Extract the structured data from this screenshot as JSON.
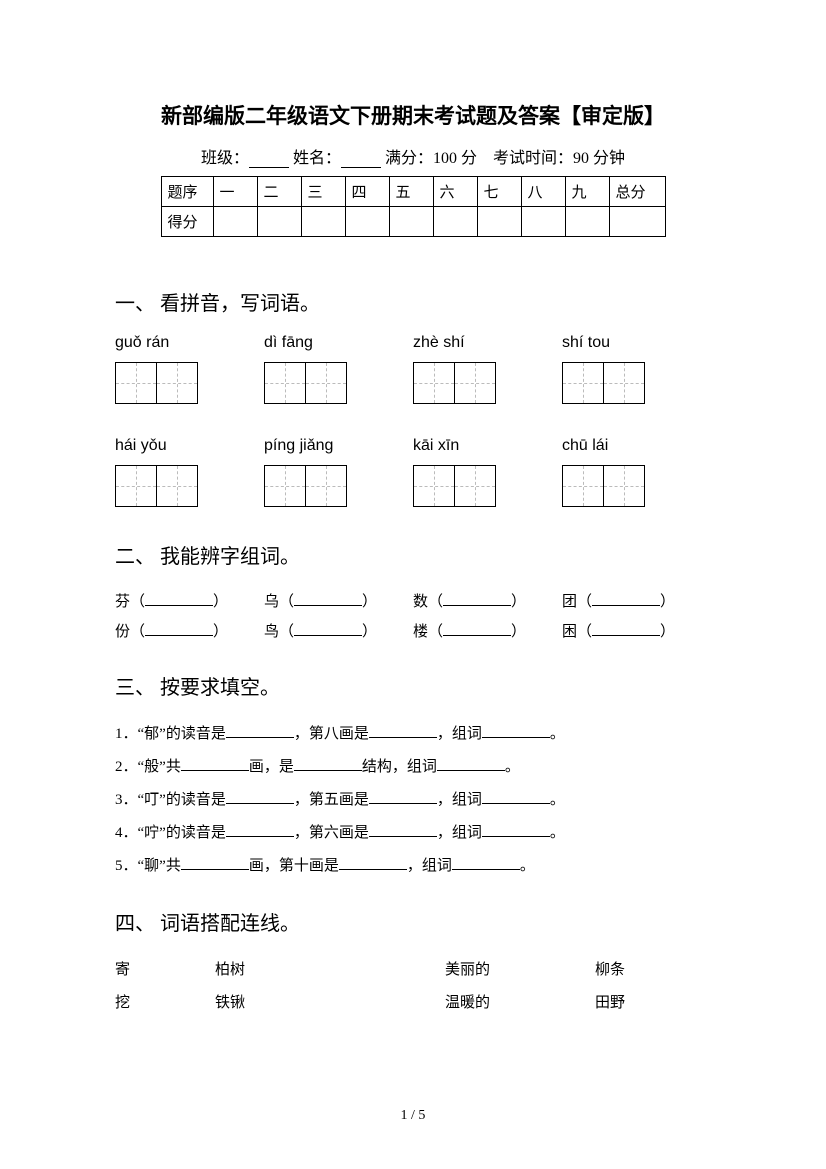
{
  "title": "新部编版二年级语文下册期末考试题及答案【审定版】",
  "info": {
    "class_label": "班级：",
    "name_label": "姓名：",
    "full_label": "满分：100 分",
    "time_label": "考试时间：90 分钟"
  },
  "score_table": {
    "row1": [
      "题序",
      "一",
      "二",
      "三",
      "四",
      "五",
      "六",
      "七",
      "八",
      "九",
      "总分"
    ],
    "row2_label": "得分"
  },
  "q1": {
    "heading": "一、 看拼音，写词语。",
    "row1": [
      "guǒ  rán",
      "dì  fāng",
      "zhè  shí",
      "shí  tou"
    ],
    "row2": [
      "hái  yǒu",
      "píng jiǎng",
      "kāi  xīn",
      "chū  lái"
    ]
  },
  "q2": {
    "heading": "二、 我能辨字组词。",
    "items_r1": [
      "芬（",
      "乌（",
      "数（",
      "团（"
    ],
    "items_r2": [
      "份（",
      "鸟（",
      "楼（",
      "困（"
    ],
    "close": "）"
  },
  "q3": {
    "heading": "三、 按要求填空。",
    "lines": [
      {
        "n": "1．",
        "a": "“郁”的读音是",
        "b": "，第八画是",
        "c": "，组词",
        "d": "。"
      },
      {
        "n": "2．",
        "a": "“般”共",
        "b": "画，是",
        "c": "结构，组词",
        "d": "。"
      },
      {
        "n": "3．",
        "a": "“叮”的读音是",
        "b": "，第五画是",
        "c": "，组词",
        "d": "。"
      },
      {
        "n": "4．",
        "a": "“咛”的读音是",
        "b": "，第六画是",
        "c": "，组词",
        "d": "。"
      },
      {
        "n": "5．",
        "a": "“聊”共",
        "b": "画，第十画是",
        "c": "，组词",
        "d": "。"
      }
    ]
  },
  "q4": {
    "heading": "四、 词语搭配连线。",
    "rows": [
      [
        "寄",
        "柏树",
        "美丽的",
        "柳条"
      ],
      [
        "挖",
        "铁锹",
        "温暖的",
        "田野"
      ]
    ]
  },
  "page_num": "1 / 5"
}
